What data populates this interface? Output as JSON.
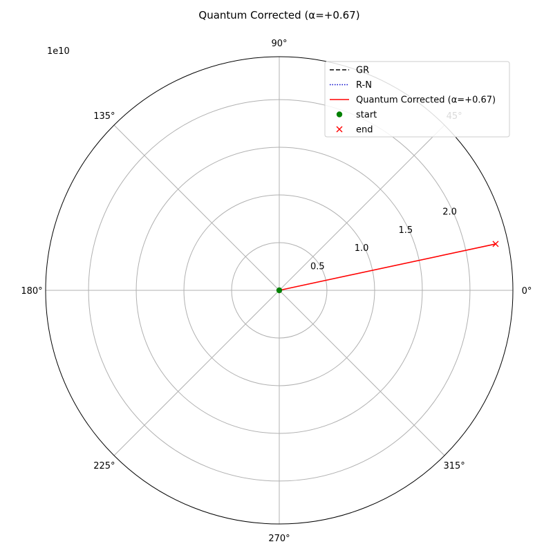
{
  "chart_data": {
    "type": "line",
    "projection": "polar",
    "title": "Quantum Corrected (α=+0.67)",
    "offset_label": "1e10",
    "r_scale": 10000000000,
    "r_lim": [
      0,
      2.45
    ],
    "r_ticks": [
      0.5,
      1.0,
      1.5,
      2.0
    ],
    "r_tick_labels": [
      "0.5",
      "1.0",
      "1.5",
      "2.0"
    ],
    "r_label_angle_deg": 22.5,
    "theta_ticks_deg": [
      0,
      45,
      90,
      135,
      180,
      225,
      270,
      315
    ],
    "theta_tick_labels": [
      "0°",
      "45°",
      "90°",
      "135°",
      "180°",
      "225°",
      "270°",
      "315°"
    ],
    "grid": true,
    "legend_position": "top-right",
    "series": [
      {
        "name": "GR",
        "color": "#000000",
        "style": "dashed",
        "points": []
      },
      {
        "name": "R-N",
        "color": "#0000cc",
        "style": "dotted",
        "points": []
      },
      {
        "name": "Quantum Corrected (α=+0.67)",
        "color": "#ff0000",
        "style": "solid",
        "points": [
          {
            "theta_deg": 0,
            "r": 0
          },
          {
            "theta_deg": 12.1,
            "r": 2.32
          }
        ]
      }
    ],
    "markers": [
      {
        "name": "start",
        "color": "#008000",
        "marker": "circle",
        "theta_deg": 0,
        "r": 0
      },
      {
        "name": "end",
        "color": "#ff0000",
        "marker": "x",
        "theta_deg": 12.1,
        "r": 2.32
      }
    ]
  }
}
